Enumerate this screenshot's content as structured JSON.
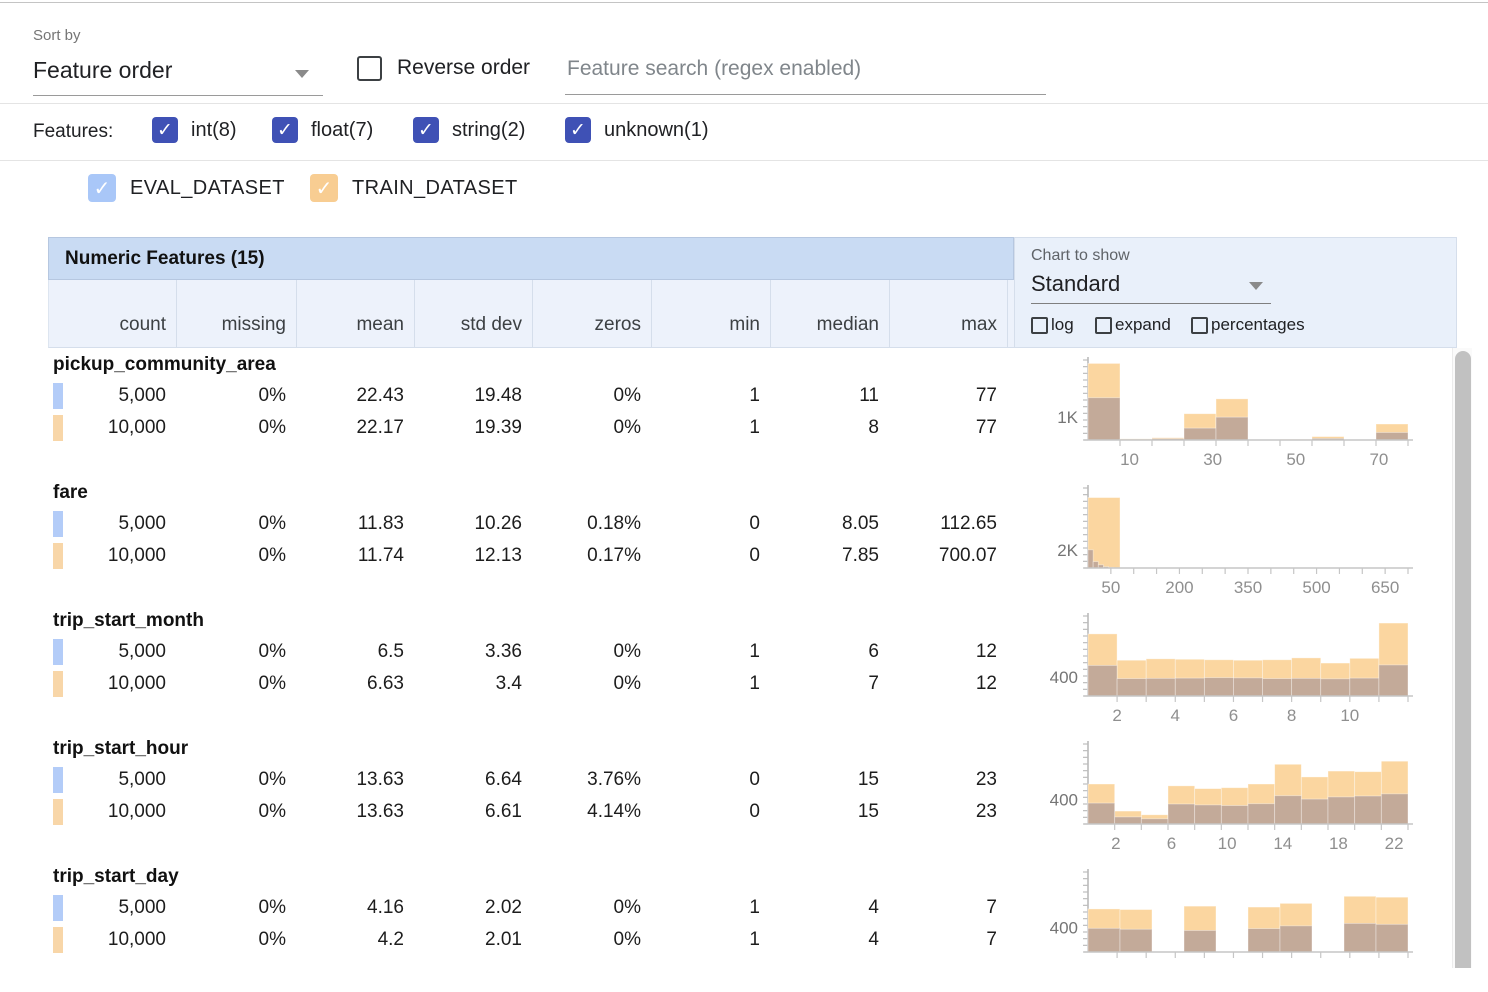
{
  "controls": {
    "sort_by_label": "Sort by",
    "sort_by_value": "Feature order",
    "reverse_order_label": "Reverse order",
    "search_placeholder": "Feature search (regex enabled)"
  },
  "filters": {
    "label": "Features:",
    "types": [
      {
        "type": "int",
        "label": "int(8)",
        "checked": true
      },
      {
        "type": "float",
        "label": "float(7)",
        "checked": true
      },
      {
        "type": "string",
        "label": "string(2)",
        "checked": true
      },
      {
        "type": "unknown",
        "label": "unknown(1)",
        "checked": true
      }
    ]
  },
  "datasets": [
    {
      "name": "EVAL_DATASET",
      "color": "#a9c7f8",
      "checked": true
    },
    {
      "name": "TRAIN_DATASET",
      "color": "#f8cd92",
      "checked": true
    }
  ],
  "table": {
    "title": "Numeric Features (15)",
    "columns": [
      "count",
      "missing",
      "mean",
      "std dev",
      "zeros",
      "min",
      "median",
      "max"
    ],
    "chart_controls": {
      "label": "Chart to show",
      "selected": "Standard",
      "checkboxes": [
        "log",
        "expand",
        "percentages"
      ]
    }
  },
  "features": [
    {
      "name": "pickup_community_area",
      "rows": [
        {
          "dataset": "EVAL_DATASET",
          "values": [
            "5,000",
            "0%",
            "22.43",
            "19.48",
            "0%",
            "1",
            "11",
            "77"
          ]
        },
        {
          "dataset": "TRAIN_DATASET",
          "values": [
            "10,000",
            "0%",
            "22.17",
            "19.39",
            "0%",
            "1",
            "8",
            "77"
          ]
        }
      ]
    },
    {
      "name": "fare",
      "rows": [
        {
          "dataset": "EVAL_DATASET",
          "values": [
            "5,000",
            "0%",
            "11.83",
            "10.26",
            "0.18%",
            "0",
            "8.05",
            "112.65"
          ]
        },
        {
          "dataset": "TRAIN_DATASET",
          "values": [
            "10,000",
            "0%",
            "11.74",
            "12.13",
            "0.17%",
            "0",
            "7.85",
            "700.07"
          ]
        }
      ]
    },
    {
      "name": "trip_start_month",
      "rows": [
        {
          "dataset": "EVAL_DATASET",
          "values": [
            "5,000",
            "0%",
            "6.5",
            "3.36",
            "0%",
            "1",
            "6",
            "12"
          ]
        },
        {
          "dataset": "TRAIN_DATASET",
          "values": [
            "10,000",
            "0%",
            "6.63",
            "3.4",
            "0%",
            "1",
            "7",
            "12"
          ]
        }
      ]
    },
    {
      "name": "trip_start_hour",
      "rows": [
        {
          "dataset": "EVAL_DATASET",
          "values": [
            "5,000",
            "0%",
            "13.63",
            "6.64",
            "3.76%",
            "0",
            "15",
            "23"
          ]
        },
        {
          "dataset": "TRAIN_DATASET",
          "values": [
            "10,000",
            "0%",
            "13.63",
            "6.61",
            "4.14%",
            "0",
            "15",
            "23"
          ]
        }
      ]
    },
    {
      "name": "trip_start_day",
      "rows": [
        {
          "dataset": "EVAL_DATASET",
          "values": [
            "5,000",
            "0%",
            "4.16",
            "2.02",
            "0%",
            "1",
            "4",
            "7"
          ]
        },
        {
          "dataset": "TRAIN_DATASET",
          "values": [
            "10,000",
            "0%",
            "4.2",
            "2.01",
            "0%",
            "1",
            "4",
            "7"
          ]
        }
      ]
    }
  ],
  "chart_data": [
    {
      "type": "bar",
      "title": "pickup_community_area histogram",
      "ylabel": "1K",
      "y_label_value": 1000,
      "ymax": 3500,
      "x_domain": [
        0,
        77
      ],
      "x_ticks": 10,
      "x_labels": [
        10,
        30,
        50,
        70
      ],
      "series": [
        {
          "name": "TRAIN_DATASET",
          "role": "train",
          "domain": [
            0,
            77
          ],
          "bins": [
            3350,
            50,
            100,
            1150,
            1800,
            20,
            30,
            150,
            20,
            700
          ]
        },
        {
          "name": "EVAL_DATASET",
          "role": "overlap",
          "domain": [
            0,
            77
          ],
          "bins": [
            1850,
            30,
            60,
            520,
            1000,
            10,
            15,
            70,
            10,
            330
          ]
        }
      ]
    },
    {
      "type": "bar",
      "title": "fare histogram",
      "ylabel": "2K",
      "y_label_value": 2000,
      "ymax": 8800,
      "x_domain": [
        0,
        700
      ],
      "x_ticks": 14,
      "x_labels": [
        50,
        200,
        350,
        500,
        650
      ],
      "series": [
        {
          "name": "TRAIN_DATASET",
          "role": "train",
          "domain": [
            0,
            700.07
          ],
          "bins": [
            7750,
            40,
            15,
            8,
            5,
            4,
            3,
            2,
            2,
            3
          ]
        },
        {
          "name": "EVAL_DATASET",
          "role": "overlap",
          "domain": [
            0,
            112.65
          ],
          "bins": [
            2000,
            700,
            350,
            150,
            70,
            35,
            18,
            9,
            5,
            3
          ]
        }
      ]
    },
    {
      "type": "bar",
      "title": "trip_start_month histogram",
      "ylabel": "400",
      "y_label_value": 400,
      "ymax": 1700,
      "x_domain": [
        1,
        12
      ],
      "x_ticks": 11,
      "x_labels": [
        2,
        4,
        6,
        8,
        10
      ],
      "series": [
        {
          "name": "TRAIN_DATASET",
          "role": "train",
          "domain": [
            1,
            12
          ],
          "bins": [
            1320,
            760,
            790,
            780,
            770,
            760,
            770,
            810,
            700,
            800,
            1550
          ]
        },
        {
          "name": "EVAL_DATASET",
          "role": "overlap",
          "domain": [
            1,
            12
          ],
          "bins": [
            650,
            370,
            375,
            380,
            390,
            385,
            370,
            375,
            365,
            380,
            660
          ]
        }
      ]
    },
    {
      "type": "bar",
      "title": "trip_start_hour histogram",
      "ylabel": "400",
      "y_label_value": 400,
      "ymax": 1300,
      "x_domain": [
        0,
        23
      ],
      "x_ticks": 12,
      "x_labels": [
        2,
        6,
        10,
        14,
        18,
        22
      ],
      "series": [
        {
          "name": "TRAIN_DATASET",
          "role": "train",
          "domain": [
            0,
            23
          ],
          "bins": [
            650,
            210,
            150,
            620,
            575,
            590,
            650,
            970,
            765,
            860,
            850,
            1020
          ]
        },
        {
          "name": "EVAL_DATASET",
          "role": "overlap",
          "domain": [
            0,
            23
          ],
          "bins": [
            340,
            115,
            85,
            325,
            310,
            300,
            330,
            460,
            405,
            440,
            455,
            490
          ]
        }
      ]
    },
    {
      "type": "bar",
      "title": "trip_start_day histogram",
      "ylabel": "400",
      "y_label_value": 400,
      "ymax": 1300,
      "x_domain": [
        1,
        7
      ],
      "x_ticks": 11,
      "x_labels": [],
      "series": [
        {
          "name": "TRAIN_DATASET",
          "role": "train",
          "domain": [
            1,
            7
          ],
          "bins": [
            700,
            690,
            0,
            745,
            0,
            730,
            790,
            0,
            905,
            890
          ]
        },
        {
          "name": "EVAL_DATASET",
          "role": "overlap",
          "domain": [
            1,
            7
          ],
          "bins": [
            385,
            370,
            0,
            350,
            0,
            380,
            425,
            0,
            465,
            450
          ]
        }
      ]
    }
  ],
  "colors": {
    "accent_indigo": "#3f51b5",
    "eval_swatch": "#b3ccf8",
    "train_swatch": "#f8d6a8",
    "train_bar": "#fbd6a0",
    "overlap_bar": "#c3aa99",
    "header_bar": "#c9dbf3",
    "subheader_bg": "#edf2fb",
    "axis": "#bdbdbd"
  }
}
